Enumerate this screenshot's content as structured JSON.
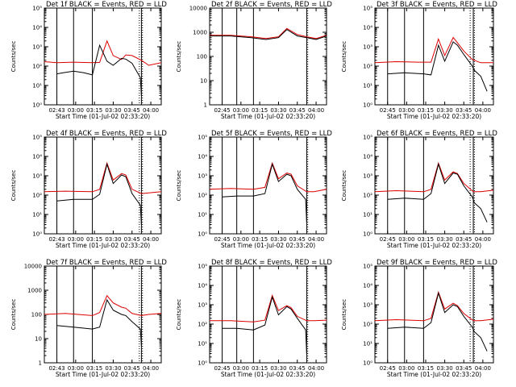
{
  "figure": {
    "title_template": "Det {det} BLACK = Events, RED = LLD",
    "xlabel": "Start Time (01-Jul-02 02:33:20)",
    "ylabel": "Counts/sec",
    "series_names": [
      "Events",
      "LLD"
    ],
    "colors": {
      "events": "#000000",
      "lld": "#dd0000",
      "axes": "#000000"
    }
  },
  "chart_data": [
    {
      "type": "line",
      "det": "1f",
      "title": "Det 1f BLACK = Events, RED = LLD",
      "xlabel": "Start Time (01-Jul-02 02:33:20)",
      "ylabel": "Counts/sec",
      "yscale": "log",
      "ylim": [
        1,
        100000
      ],
      "yticks": [
        "10⁰",
        "10¹",
        "10²",
        "10³",
        "10⁴",
        "10⁵"
      ],
      "xticks": [
        "02:43",
        "03:00",
        "03:15",
        "03:30",
        "03:45",
        "04:00"
      ],
      "xlim_sec": [
        0,
        5600
      ],
      "vlines_sec": [
        600,
        1400,
        2300,
        4650
      ],
      "dotted_vlines_sec": [
        4550,
        4700
      ],
      "events": {
        "x_sec": [
          600,
          900,
          1400,
          1900,
          2300,
          2650,
          3000,
          3300,
          3700,
          3900,
          4200,
          4600,
          4650
        ],
        "values": [
          40,
          45,
          55,
          45,
          35,
          1200,
          180,
          110,
          250,
          230,
          140,
          25,
          3
        ]
      },
      "lld": {
        "x_sec": [
          0,
          600,
          1400,
          2300,
          2650,
          3000,
          3300,
          3700,
          3900,
          4200,
          4650,
          5000,
          5600
        ],
        "values": [
          170,
          150,
          160,
          150,
          155,
          2000,
          350,
          220,
          380,
          350,
          200,
          110,
          150
        ]
      }
    },
    {
      "type": "line",
      "det": "2f",
      "title": "Det 2f BLACK = Events, RED = LLD",
      "xlabel": "Start Time (01-Jul-02 02:33:20)",
      "ylabel": "Counts/sec",
      "yscale": "log",
      "ylim": [
        1,
        10000
      ],
      "yticks": [
        "1",
        "10",
        "100",
        "1000",
        "10000"
      ],
      "xticks": [
        "02:45",
        "03:00",
        "03:15",
        "03:30",
        "03:45",
        "04:00"
      ],
      "xlim_sec": [
        0,
        5600
      ],
      "vlines_sec": [
        600,
        1300,
        2100,
        4650
      ],
      "dotted_vlines_sec": [
        4700
      ],
      "events": {
        "x_sec": [
          0,
          1000,
          2000,
          2700,
          3300,
          3700,
          4200,
          4650,
          5100,
          5600
        ],
        "values": [
          700,
          700,
          600,
          500,
          600,
          1300,
          700,
          600,
          500,
          700
        ]
      },
      "lld": {
        "x_sec": [
          0,
          1000,
          2000,
          2700,
          3300,
          3700,
          4200,
          4650,
          5100,
          5600
        ],
        "values": [
          750,
          750,
          650,
          550,
          650,
          1450,
          800,
          650,
          550,
          750
        ]
      }
    },
    {
      "type": "line",
      "det": "3f",
      "title": "Det 3f BLACK = Events, RED = LLD",
      "xlabel": "Start Time (01-Jul-02 02:33:20)",
      "ylabel": "Counts/sec",
      "yscale": "log",
      "ylim": [
        1,
        100000
      ],
      "yticks": [
        "10⁰",
        "10¹",
        "10²",
        "10³",
        "10⁴",
        "10⁵"
      ],
      "xticks": [
        "02:45",
        "03:00",
        "03:15",
        "03:30",
        "03:45",
        "04:00"
      ],
      "xlim_sec": [
        0,
        5600
      ],
      "vlines_sec": [
        600,
        1400,
        2300,
        4650
      ],
      "dotted_vlines_sec": [
        4500,
        4700
      ],
      "events": {
        "x_sec": [
          600,
          1400,
          2300,
          2650,
          3000,
          3300,
          3700,
          3900,
          4200,
          4600,
          4700,
          5000,
          5300
        ],
        "values": [
          40,
          45,
          40,
          35,
          1200,
          180,
          1800,
          1200,
          400,
          100,
          60,
          30,
          5
        ]
      },
      "lld": {
        "x_sec": [
          0,
          1000,
          2000,
          2650,
          3000,
          3300,
          3700,
          3900,
          4200,
          4600,
          5000,
          5600
        ],
        "values": [
          150,
          170,
          160,
          160,
          2500,
          350,
          3000,
          1600,
          600,
          220,
          150,
          150
        ]
      }
    },
    {
      "type": "line",
      "det": "4f",
      "title": "Det 4f BLACK = Events, RED = LLD",
      "xlabel": "Start Time (01-Jul-02 02:33:20)",
      "ylabel": "Counts/sec",
      "yscale": "log",
      "ylim": [
        1,
        100000
      ],
      "yticks": [
        "10⁰",
        "10¹",
        "10²",
        "10³",
        "10⁴",
        "10⁵"
      ],
      "xticks": [
        "02:43",
        "03:00",
        "03:15",
        "03:30",
        "03:45",
        "04:00"
      ],
      "xlim_sec": [
        0,
        5600
      ],
      "vlines_sec": [
        600,
        1400,
        2300,
        4650
      ],
      "dotted_vlines_sec": [
        4550,
        4700
      ],
      "events": {
        "x_sec": [
          600,
          1400,
          2300,
          2650,
          3000,
          3300,
          3700,
          3900,
          4200,
          4600,
          4650
        ],
        "values": [
          50,
          60,
          60,
          110,
          4000,
          400,
          1100,
          900,
          120,
          30,
          3
        ]
      },
      "lld": {
        "x_sec": [
          0,
          1000,
          2300,
          2650,
          3000,
          3300,
          3700,
          3900,
          4200,
          4650,
          5000,
          5600
        ],
        "values": [
          150,
          160,
          150,
          200,
          4500,
          600,
          1300,
          1100,
          200,
          120,
          130,
          150
        ]
      }
    },
    {
      "type": "line",
      "det": "5f",
      "title": "Det 5f BLACK = Events, RED = LLD",
      "xlabel": "Start Time (01-Jul-02 02:33:20)",
      "ylabel": "Counts/sec",
      "yscale": "log",
      "ylim": [
        1,
        100000
      ],
      "yticks": [
        "10⁰",
        "10¹",
        "10²",
        "10³",
        "10⁴",
        "10⁵"
      ],
      "xticks": [
        "02:45",
        "03:00",
        "03:15",
        "03:30",
        "03:45",
        "04:00"
      ],
      "xlim_sec": [
        0,
        5600
      ],
      "vlines_sec": [
        600,
        1300,
        2100,
        4650
      ],
      "dotted_vlines_sec": [
        4700
      ],
      "events": {
        "x_sec": [
          600,
          1300,
          2100,
          2650,
          3000,
          3300,
          3700,
          3900,
          4200,
          4600,
          4650
        ],
        "values": [
          80,
          90,
          90,
          120,
          4000,
          500,
          1200,
          1000,
          200,
          60,
          4
        ]
      },
      "lld": {
        "x_sec": [
          0,
          1000,
          2100,
          2650,
          3000,
          3300,
          3700,
          3900,
          4200,
          4650,
          5000,
          5600
        ],
        "values": [
          200,
          220,
          200,
          250,
          4500,
          700,
          1400,
          1200,
          300,
          150,
          150,
          200
        ]
      }
    },
    {
      "type": "line",
      "det": "6f",
      "title": "Det 6f BLACK = Events, RED = LLD",
      "xlabel": "Start Time (01-Jul-02 02:33:20)",
      "ylabel": "Counts/sec",
      "yscale": "log",
      "ylim": [
        1,
        100000
      ],
      "yticks": [
        "10⁰",
        "10¹",
        "10²",
        "10³",
        "10⁴",
        "10⁵"
      ],
      "xticks": [
        "02:45",
        "03:00",
        "03:15",
        "03:30",
        "03:45",
        "04:00"
      ],
      "xlim_sec": [
        0,
        5600
      ],
      "vlines_sec": [
        600,
        1400,
        2300,
        4650
      ],
      "dotted_vlines_sec": [
        4500,
        4700
      ],
      "events": {
        "x_sec": [
          600,
          1400,
          2300,
          2650,
          3000,
          3300,
          3700,
          3900,
          4200,
          4600,
          4700,
          5000,
          5300
        ],
        "values": [
          60,
          70,
          60,
          120,
          4000,
          400,
          1400,
          1200,
          300,
          80,
          40,
          20,
          4
        ]
      },
      "lld": {
        "x_sec": [
          0,
          1000,
          2300,
          2650,
          3000,
          3300,
          3700,
          3900,
          4200,
          4650,
          5000,
          5600
        ],
        "values": [
          150,
          170,
          150,
          200,
          4500,
          600,
          1600,
          1300,
          400,
          150,
          150,
          180
        ]
      }
    },
    {
      "type": "line",
      "det": "7f",
      "title": "Det 7f BLACK = Events, RED = LLD",
      "xlabel": "Start Time (01-Jul-02 02:33:20)",
      "ylabel": "Counts/sec",
      "yscale": "log",
      "ylim": [
        1,
        10000
      ],
      "yticks": [
        "1",
        "10",
        "100",
        "1000",
        "10000"
      ],
      "xticks": [
        "02:43",
        "03:00",
        "03:15",
        "03:30",
        "03:45",
        "04:00"
      ],
      "xlim_sec": [
        0,
        5600
      ],
      "vlines_sec": [
        600,
        1400,
        2300,
        4650
      ],
      "dotted_vlines_sec": [
        4550,
        4700
      ],
      "events": {
        "x_sec": [
          600,
          1400,
          2300,
          2650,
          3000,
          3300,
          3700,
          3900,
          4200,
          4600,
          4650
        ],
        "values": [
          35,
          30,
          25,
          30,
          400,
          150,
          100,
          90,
          50,
          25,
          5
        ]
      },
      "lld": {
        "x_sec": [
          0,
          1000,
          2300,
          2650,
          3000,
          3300,
          3700,
          3900,
          4200,
          4650,
          5000,
          5600
        ],
        "values": [
          100,
          110,
          90,
          120,
          600,
          300,
          200,
          180,
          110,
          90,
          100,
          110
        ]
      }
    },
    {
      "type": "line",
      "det": "8f",
      "title": "Det 8f BLACK = Events, RED = LLD",
      "xlabel": "Start Time (01-Jul-02 02:33:20)",
      "ylabel": "Counts/sec",
      "yscale": "log",
      "ylim": [
        1,
        100000
      ],
      "yticks": [
        "10⁰",
        "10¹",
        "10²",
        "10³",
        "10⁴",
        "10⁵"
      ],
      "xticks": [
        "02:45",
        "03:00",
        "03:15",
        "03:30",
        "03:45",
        "04:00"
      ],
      "xlim_sec": [
        0,
        5600
      ],
      "vlines_sec": [
        600,
        1300,
        2100,
        4650
      ],
      "dotted_vlines_sec": [
        4700
      ],
      "events": {
        "x_sec": [
          600,
          1300,
          2100,
          2650,
          3000,
          3300,
          3700,
          3900,
          4200,
          4600,
          4650
        ],
        "values": [
          60,
          60,
          50,
          90,
          2500,
          300,
          800,
          600,
          200,
          50,
          3
        ]
      },
      "lld": {
        "x_sec": [
          0,
          1000,
          2100,
          2650,
          3000,
          3300,
          3700,
          3900,
          4200,
          4650,
          5000,
          5600
        ],
        "values": [
          150,
          150,
          130,
          160,
          3000,
          500,
          900,
          700,
          250,
          150,
          150,
          160
        ]
      }
    },
    {
      "type": "line",
      "det": "9f",
      "title": "Det 9f BLACK = Events, RED = LLD",
      "xlabel": "Start Time (01-Jul-02 02:33:20)",
      "ylabel": "Counts/sec",
      "yscale": "log",
      "ylim": [
        1,
        100000
      ],
      "yticks": [
        "10⁰",
        "10¹",
        "10²",
        "10³",
        "10⁴",
        "10⁵"
      ],
      "xticks": [
        "02:45",
        "03:00",
        "03:15",
        "03:30",
        "03:45",
        "04:00"
      ],
      "xlim_sec": [
        0,
        5600
      ],
      "vlines_sec": [
        600,
        1400,
        2300,
        4650
      ],
      "dotted_vlines_sec": [
        4500,
        4700
      ],
      "events": {
        "x_sec": [
          600,
          1400,
          2300,
          2650,
          3000,
          3300,
          3700,
          3900,
          4200,
          4600,
          4700,
          5000,
          5300
        ],
        "values": [
          60,
          70,
          60,
          120,
          4000,
          400,
          1000,
          800,
          250,
          70,
          40,
          20,
          4
        ]
      },
      "lld": {
        "x_sec": [
          0,
          1000,
          2300,
          2650,
          3000,
          3300,
          3700,
          3900,
          4200,
          4650,
          5000,
          5600
        ],
        "values": [
          150,
          170,
          150,
          200,
          4500,
          600,
          1200,
          900,
          350,
          150,
          150,
          180
        ]
      }
    }
  ]
}
